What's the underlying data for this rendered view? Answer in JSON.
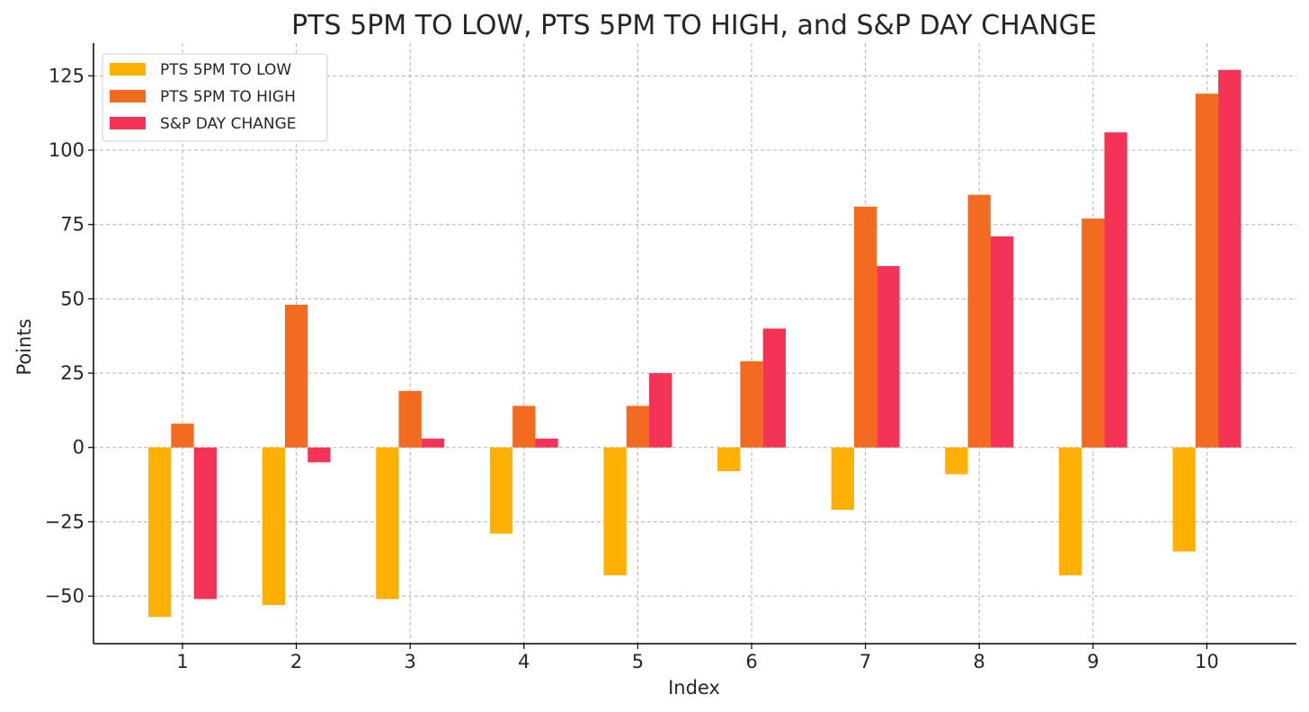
{
  "chart_data": {
    "type": "bar",
    "title": "PTS 5PM TO LOW, PTS 5PM TO HIGH, and S&P DAY CHANGE",
    "xlabel": "Index",
    "ylabel": "Points",
    "categories": [
      "1",
      "2",
      "3",
      "4",
      "5",
      "6",
      "7",
      "8",
      "9",
      "10"
    ],
    "series": [
      {
        "name": "PTS 5PM TO LOW",
        "color": "#FFB000",
        "values": [
          -57,
          -53,
          -51,
          -29,
          -43,
          -8,
          -21,
          -9,
          -43,
          -35
        ]
      },
      {
        "name": "PTS 5PM TO HIGH",
        "color": "#F26B21",
        "values": [
          8,
          48,
          19,
          14,
          14,
          29,
          81,
          85,
          77,
          119
        ]
      },
      {
        "name": "S&P DAY CHANGE",
        "color": "#F43356",
        "values": [
          -51,
          -5,
          3,
          3,
          25,
          40,
          61,
          71,
          106,
          127
        ]
      }
    ],
    "ylim": [
      -66,
      136
    ],
    "yticks": [
      -50,
      -25,
      0,
      25,
      50,
      75,
      100,
      125
    ],
    "ytick_labels": [
      "−50",
      "−25",
      "0",
      "25",
      "50",
      "75",
      "100",
      "125"
    ],
    "grid": true,
    "legend_position": "top-left"
  }
}
